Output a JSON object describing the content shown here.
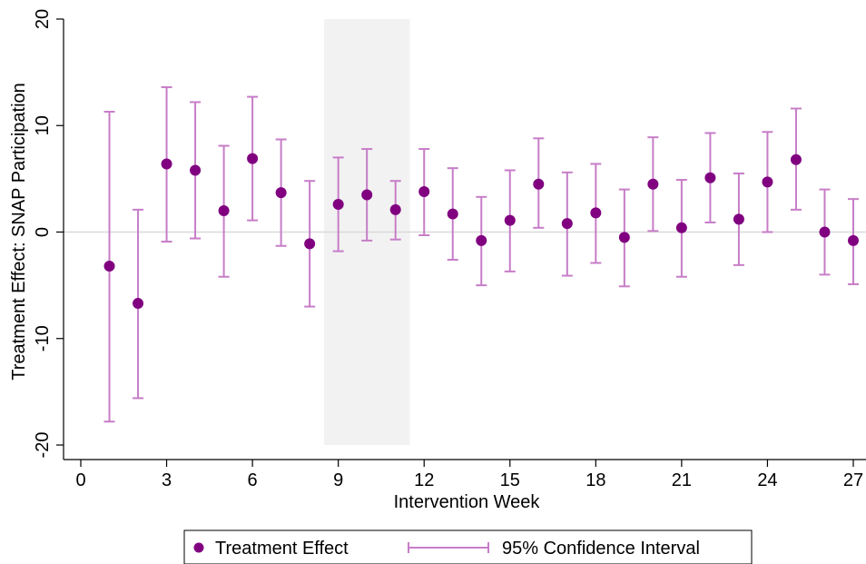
{
  "chart_data": {
    "type": "scatter",
    "xlabel": "Intervention Week",
    "ylabel": "Treatment Effect: SNAP Participation",
    "xlim": [
      0,
      27
    ],
    "ylim": [
      -20,
      20
    ],
    "xticks": [
      0,
      3,
      6,
      9,
      12,
      15,
      18,
      21,
      24,
      27
    ],
    "yticks": [
      20,
      10,
      0,
      -10,
      -20
    ],
    "shaded_region": [
      8.5,
      11.5
    ],
    "reference_line_y": 0,
    "colors": {
      "point": "#800080",
      "interval": "#c77dc7",
      "shade": "#f2f2f2",
      "reference": "#d9d9d9"
    },
    "legend": {
      "placement": "bottom",
      "entries": [
        "Treatment Effect",
        "95% Confidence Interval"
      ]
    },
    "series": [
      {
        "name": "Treatment Effect",
        "x": [
          1,
          2,
          3,
          4,
          5,
          6,
          7,
          8,
          9,
          10,
          11,
          12,
          13,
          14,
          15,
          16,
          17,
          18,
          19,
          20,
          21,
          22,
          23,
          24,
          25,
          26,
          27
        ],
        "y": [
          -3.2,
          -6.7,
          6.4,
          5.8,
          2.0,
          6.9,
          3.7,
          -1.1,
          2.6,
          3.5,
          2.1,
          3.8,
          1.7,
          -0.8,
          1.1,
          4.5,
          0.8,
          1.8,
          -0.5,
          4.5,
          0.4,
          5.1,
          1.2,
          4.7,
          6.8,
          0.0,
          -0.8
        ],
        "lower": [
          -17.8,
          -15.6,
          -0.9,
          -0.6,
          -4.2,
          1.1,
          -1.3,
          -7.0,
          -1.8,
          -0.8,
          -0.7,
          -0.3,
          -2.6,
          -5.0,
          -3.7,
          0.4,
          -4.1,
          -2.9,
          -5.1,
          0.1,
          -4.2,
          0.9,
          -3.1,
          0.0,
          2.1,
          -4.0,
          -4.9
        ],
        "upper": [
          11.3,
          2.1,
          13.6,
          12.2,
          8.1,
          12.7,
          8.7,
          4.8,
          7.0,
          7.8,
          4.8,
          7.8,
          6.0,
          3.3,
          5.8,
          8.8,
          5.6,
          6.4,
          4.0,
          8.9,
          4.9,
          9.3,
          5.5,
          9.4,
          11.6,
          4.0,
          3.1
        ]
      }
    ]
  }
}
